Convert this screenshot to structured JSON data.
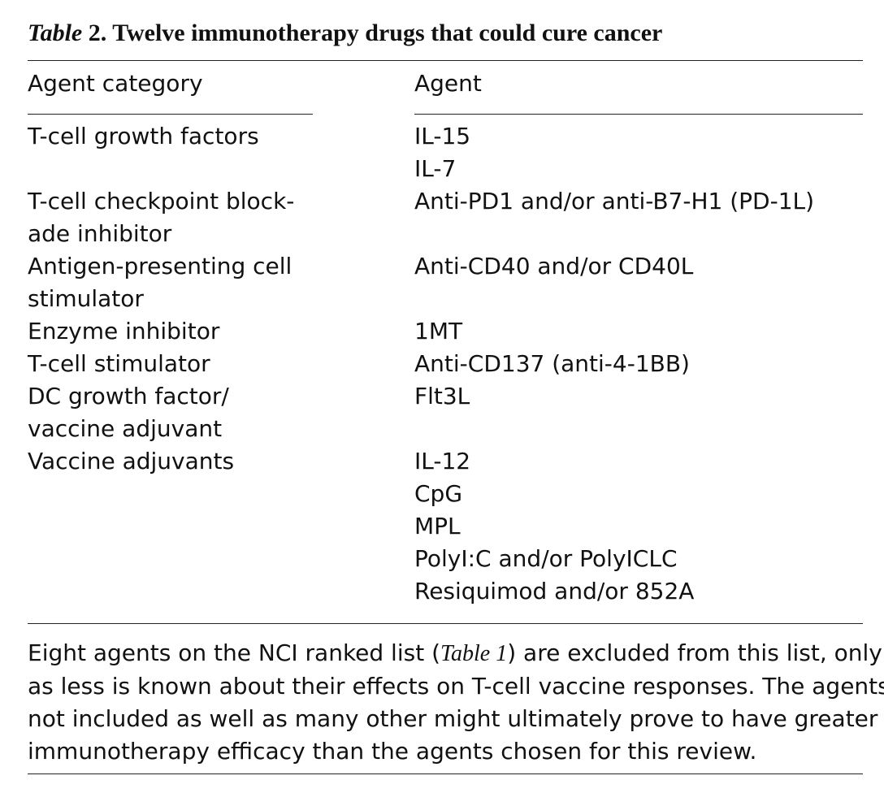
{
  "table": {
    "title_prefix": "Table",
    "title_number": "2.",
    "title_text": "Twelve immunotherapy drugs that could cure cancer",
    "col_category_header": "Agent category",
    "col_agent_header": "Agent",
    "rows": [
      {
        "category_lines": [
          "T-cell growth factors"
        ],
        "agents": [
          "IL-15",
          "IL-7"
        ]
      },
      {
        "category_lines": [
          "T-cell checkpoint block-",
          "ade inhibitor"
        ],
        "agents": [
          "Anti-PD1 and/or anti-B7-H1 (PD-1L)"
        ]
      },
      {
        "category_lines": [
          "Antigen-presenting cell",
          "stimulator"
        ],
        "agents": [
          "Anti-CD40 and/or CD40L"
        ]
      },
      {
        "category_lines": [
          "Enzyme inhibitor"
        ],
        "agents": [
          "1MT"
        ]
      },
      {
        "category_lines": [
          "T-cell stimulator"
        ],
        "agents": [
          "Anti-CD137 (anti-4-1BB)"
        ]
      },
      {
        "category_lines": [
          "DC growth factor/",
          "vaccine adjuvant"
        ],
        "agents": [
          "Flt3L"
        ]
      },
      {
        "category_lines": [
          "Vaccine adjuvants"
        ],
        "agents": [
          "IL-12",
          "CpG",
          "MPL",
          "PolyI:C and/or PolyICLC",
          "Resiquimod and/or 852A"
        ]
      }
    ]
  },
  "footnote": {
    "line1_before": "Eight agents on the NCI ranked list (",
    "line1_ref": "Table 1",
    "line1_after": ") are excluded from this list, only",
    "line2": "as less is known about their effects on T-cell vaccine responses. The agents",
    "line3": "not included as well as many other might ultimately prove to have greater",
    "line4": "immunotherapy efficacy than the agents chosen for this review."
  }
}
